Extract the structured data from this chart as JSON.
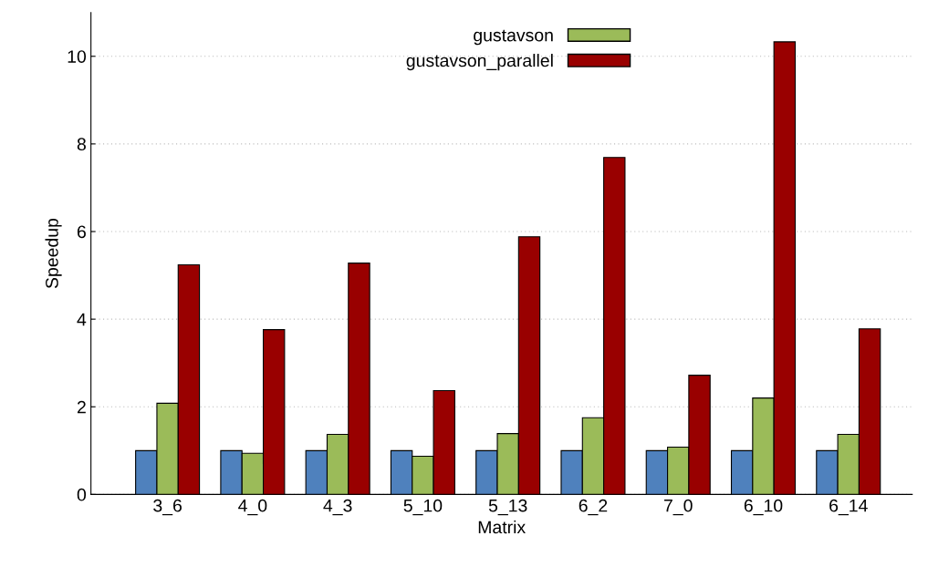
{
  "chart_data": {
    "type": "bar",
    "xlabel": "Matrix",
    "ylabel": "Speedup",
    "categories": [
      "3_6",
      "4_0",
      "4_3",
      "5_10",
      "5_13",
      "6_2",
      "7_0",
      "6_10",
      "6_14"
    ],
    "series": [
      {
        "color": "#4f81bd",
        "values": [
          1,
          1,
          1,
          1,
          1,
          1,
          1,
          1,
          1
        ]
      },
      {
        "name": "gustavson",
        "color": "#9bbb59",
        "values": [
          2.08,
          0.94,
          1.37,
          0.87,
          1.39,
          1.75,
          1.08,
          2.2,
          1.37
        ]
      },
      {
        "name": "gustavson_parallel",
        "color": "#990000",
        "values": [
          5.24,
          3.76,
          5.28,
          2.37,
          5.88,
          7.69,
          2.72,
          10.33,
          3.78
        ]
      }
    ],
    "ylim": [
      0,
      11
    ],
    "yticks": [
      0,
      2,
      4,
      6,
      8,
      10
    ],
    "grid": "y",
    "legend": "top"
  }
}
